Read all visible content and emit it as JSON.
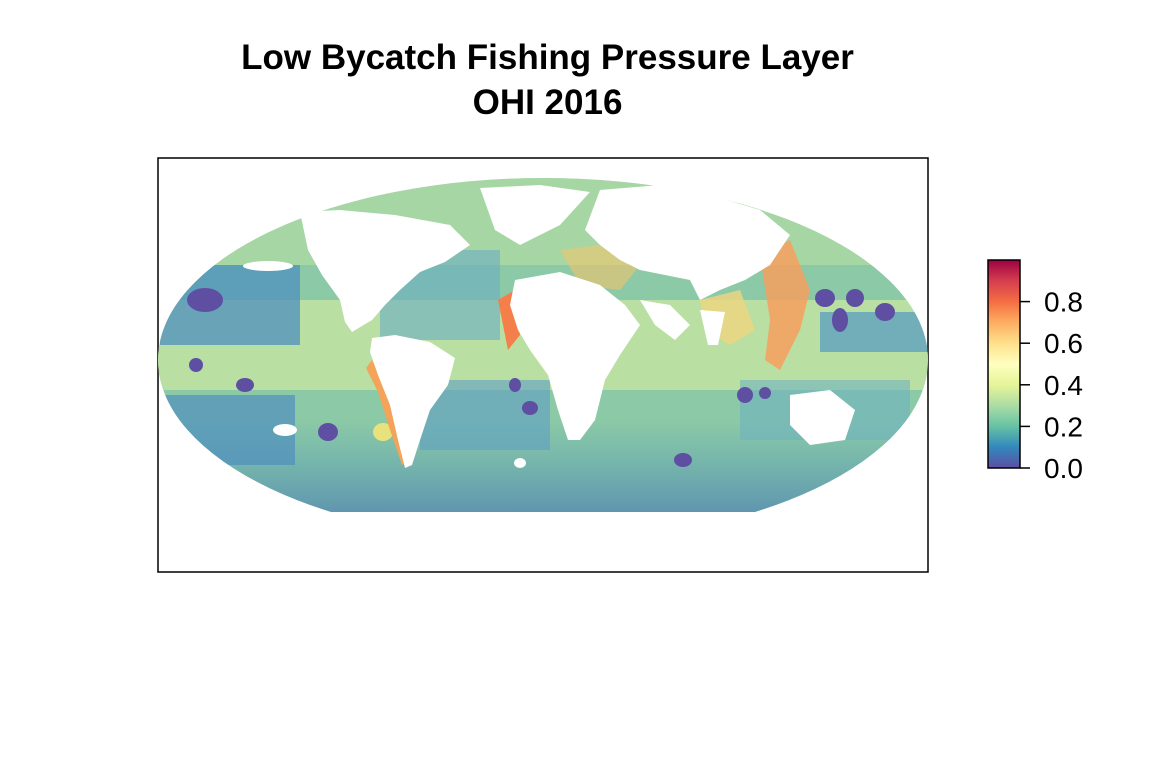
{
  "title": {
    "line1": "Low Bycatch Fishing Pressure Layer",
    "line2": "OHI 2016"
  },
  "legend": {
    "range": [
      0.0,
      1.0
    ],
    "ticks": [
      {
        "value": 0.0,
        "label": "0.0"
      },
      {
        "value": 0.2,
        "label": "0.2"
      },
      {
        "value": 0.4,
        "label": "0.4"
      },
      {
        "value": 0.6,
        "label": "0.6"
      },
      {
        "value": 0.8,
        "label": "0.8"
      }
    ],
    "colors": [
      "#5E4FA2",
      "#3288BD",
      "#66C2A5",
      "#ABDDA4",
      "#E6F598",
      "#FFFFBF",
      "#FEE08B",
      "#FDAE61",
      "#F46D43",
      "#D53E4F",
      "#9E0142"
    ]
  },
  "map": {
    "projection": "mollweide",
    "ocean_base_color": "#8CC9A6",
    "land_color": "#ffffff"
  }
}
